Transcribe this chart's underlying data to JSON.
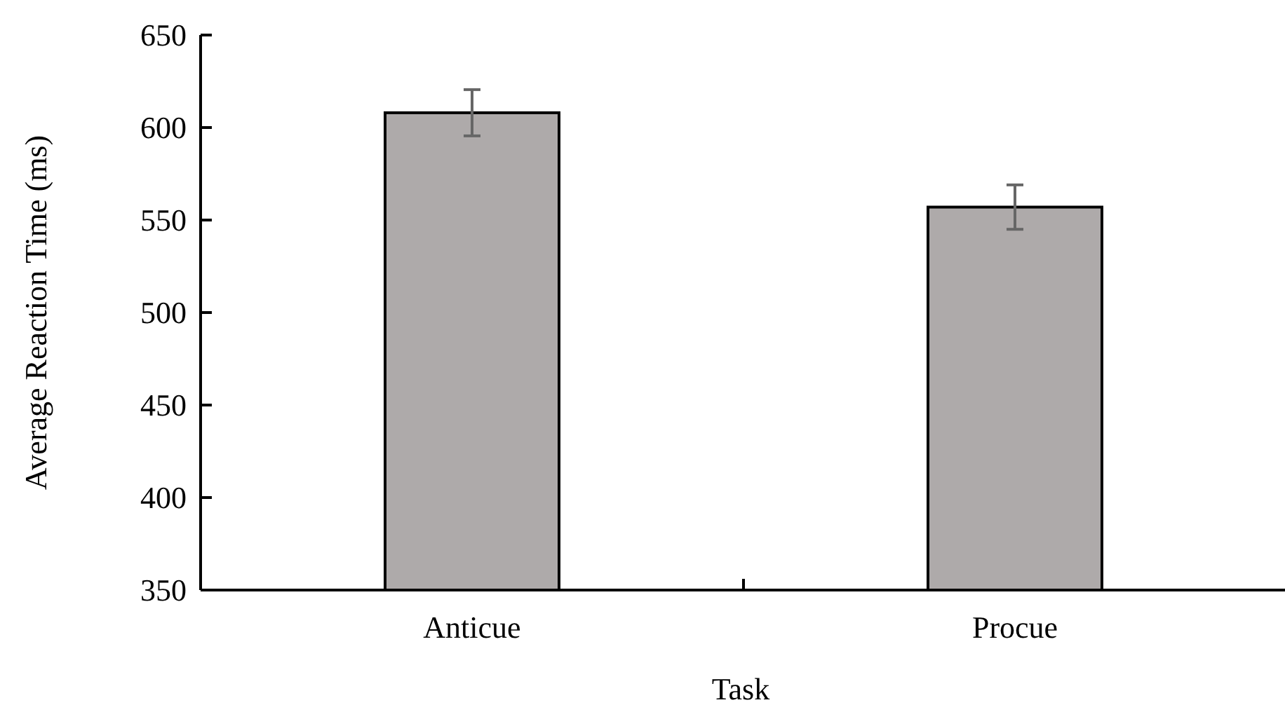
{
  "chart_data": {
    "type": "bar",
    "xlabel": "Task",
    "ylabel": "Average Reaction Time (ms)",
    "categories": [
      "Anticue",
      "Procue"
    ],
    "series": [
      {
        "color": "#aeaaaa",
        "values": [
          608,
          557
        ],
        "errors": [
          12.5,
          12
        ]
      }
    ],
    "ylim": [
      350,
      650
    ],
    "yticks": [
      350,
      400,
      450,
      500,
      550,
      600,
      650
    ],
    "grid": false
  }
}
